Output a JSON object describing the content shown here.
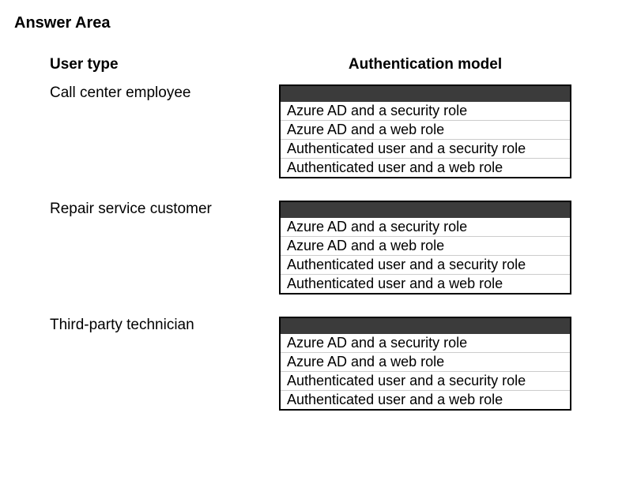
{
  "page_title": "Answer Area",
  "headers": {
    "user_type": "User type",
    "auth_model": "Authentication model"
  },
  "rows": [
    {
      "label": "Call center employee",
      "options": [
        "Azure AD and a security role",
        "Azure AD and a web role",
        "Authenticated user and a security role",
        "Authenticated user and a web role"
      ]
    },
    {
      "label": "Repair service customer",
      "options": [
        "Azure AD and a security role",
        "Azure AD and a web role",
        "Authenticated user and a security role",
        "Authenticated user and a web role"
      ]
    },
    {
      "label": "Third-party technician",
      "options": [
        "Azure AD and a security role",
        "Azure AD and a web role",
        "Authenticated user and a security role",
        "Authenticated user and a web role"
      ]
    }
  ],
  "styling": {
    "background_color": "#ffffff",
    "text_color": "#000000",
    "dropdown_header_color": "#3b3b3b",
    "border_color": "#000000",
    "option_divider_color": "#cccccc",
    "title_fontsize": 20,
    "header_fontsize": 19,
    "label_fontsize": 19,
    "option_fontsize": 18
  }
}
